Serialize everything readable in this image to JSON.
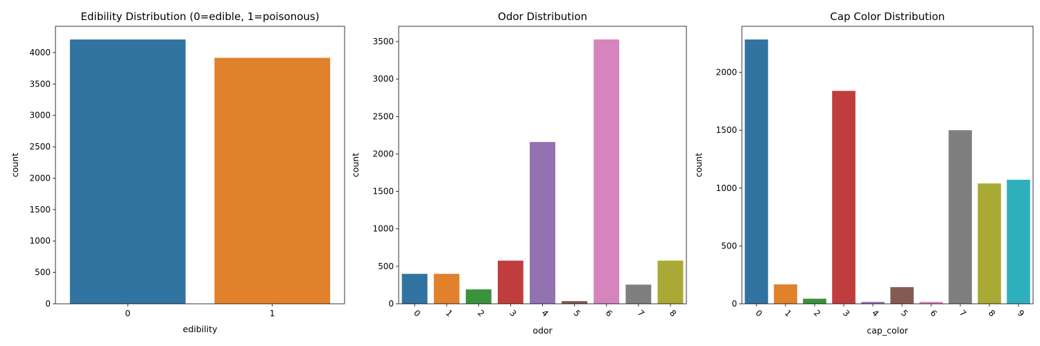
{
  "chart_data": [
    {
      "type": "bar",
      "title": "Edibility Distribution (0=edible, 1=poisonous)",
      "xlabel": "edibility",
      "ylabel": "count",
      "categories": [
        "0",
        "1"
      ],
      "values": [
        4208,
        3916
      ],
      "ylim": [
        0,
        4418
      ],
      "yticks": [
        0,
        500,
        1000,
        1500,
        2000,
        2500,
        3000,
        3500,
        4000
      ],
      "colors": [
        "#3274a1",
        "#e1812c"
      ],
      "rotate_xticks": false,
      "grid": false
    },
    {
      "type": "bar",
      "title": "Odor Distribution",
      "xlabel": "odor",
      "ylabel": "count",
      "categories": [
        "0",
        "1",
        "2",
        "3",
        "4",
        "5",
        "6",
        "7",
        "8"
      ],
      "values": [
        400,
        400,
        192,
        576,
        2160,
        36,
        3528,
        256,
        576
      ],
      "ylim": [
        0,
        3704
      ],
      "yticks": [
        0,
        500,
        1000,
        1500,
        2000,
        2500,
        3000,
        3500
      ],
      "colors": [
        "#3274a1",
        "#e1812c",
        "#3a923a",
        "#c03d3e",
        "#9372b2",
        "#845b53",
        "#d684bd",
        "#7f7f7f",
        "#a9aa35"
      ],
      "rotate_xticks": true,
      "grid": false
    },
    {
      "type": "bar",
      "title": "Cap Color Distribution",
      "xlabel": "cap_color",
      "ylabel": "count",
      "categories": [
        "0",
        "1",
        "2",
        "3",
        "4",
        "5",
        "6",
        "7",
        "8",
        "9"
      ],
      "values": [
        2284,
        168,
        44,
        1840,
        16,
        144,
        16,
        1500,
        1040,
        1072
      ],
      "ylim": [
        0,
        2398
      ],
      "yticks": [
        0,
        500,
        1000,
        1500,
        2000
      ],
      "colors": [
        "#3274a1",
        "#e1812c",
        "#3a923a",
        "#c03d3e",
        "#9372b2",
        "#845b53",
        "#d684bd",
        "#7f7f7f",
        "#a9aa35",
        "#2eb0bc"
      ],
      "rotate_xticks": true,
      "grid": false
    }
  ]
}
